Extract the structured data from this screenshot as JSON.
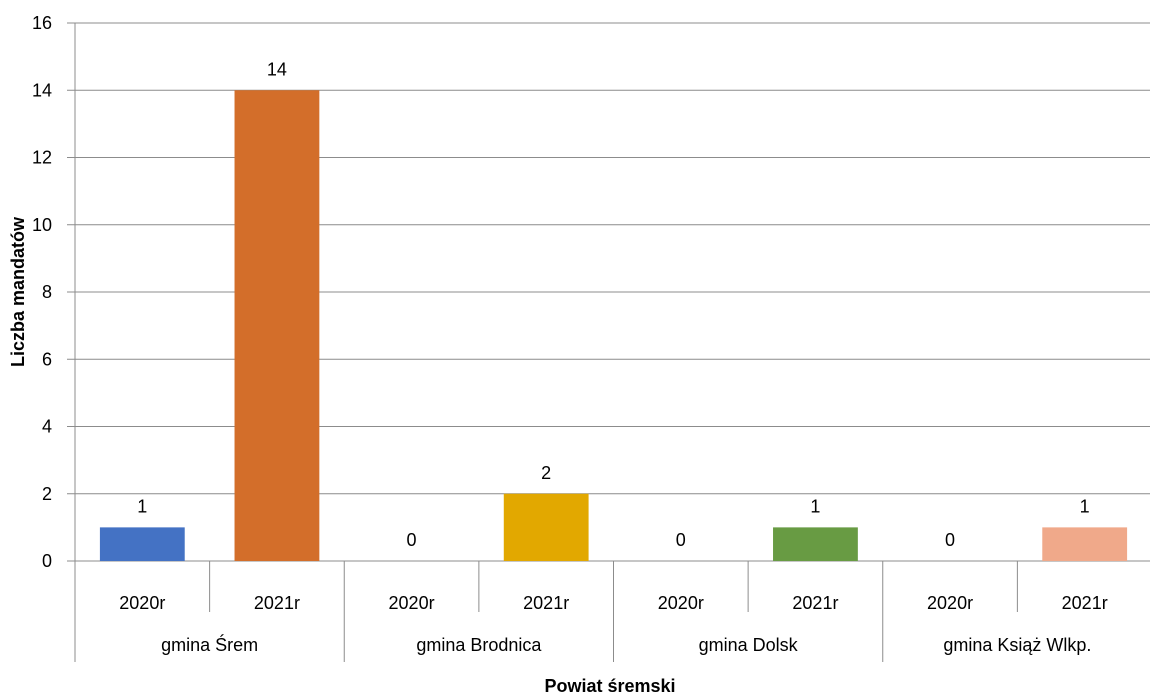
{
  "chart_data": {
    "type": "bar",
    "title": "",
    "xlabel": "Powiat śremski",
    "ylabel": "Liczba mandatów",
    "ylim": [
      0,
      16
    ],
    "yticks": [
      0,
      2,
      4,
      6,
      8,
      10,
      12,
      14,
      16
    ],
    "grid": true,
    "legend": "none",
    "groups": [
      "gmina Śrem",
      "gmina Brodnica",
      "gmina Dolsk",
      "gmina Książ Wlkp."
    ],
    "categories": [
      {
        "group": "gmina Śrem",
        "label": "2020r",
        "value": 1,
        "color": "#4472C4"
      },
      {
        "group": "gmina Śrem",
        "label": "2021r",
        "value": 14,
        "color": "#D36E2A"
      },
      {
        "group": "gmina Brodnica",
        "label": "2020r",
        "value": 0,
        "color": "#A5A5A5"
      },
      {
        "group": "gmina Brodnica",
        "label": "2021r",
        "value": 2,
        "color": "#E2A800"
      },
      {
        "group": "gmina Dolsk",
        "label": "2020r",
        "value": 0,
        "color": "#5B9BD5"
      },
      {
        "group": "gmina Dolsk",
        "label": "2021r",
        "value": 1,
        "color": "#689B43"
      },
      {
        "group": "gmina Książ Wlkp.",
        "label": "2020r",
        "value": 0,
        "color": "#264478"
      },
      {
        "group": "gmina Książ Wlkp.",
        "label": "2021r",
        "value": 1,
        "color": "#F0A98A"
      }
    ]
  }
}
